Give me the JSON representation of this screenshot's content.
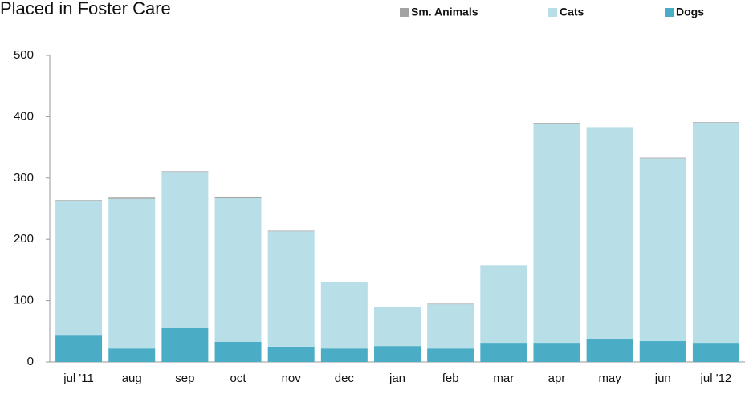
{
  "chart_data": {
    "type": "stacked_bar",
    "title": "Placed in Foster Care",
    "categories": [
      "jul '11",
      "aug",
      "sep",
      "oct",
      "nov",
      "dec",
      "jan",
      "feb",
      "mar",
      "apr",
      "may",
      "jun",
      "jul '12"
    ],
    "series": [
      {
        "name": "Sm. Animals",
        "color": "#a3a3a3",
        "values": [
          1,
          2,
          1,
          2,
          1,
          0,
          0,
          1,
          0,
          1,
          0,
          1,
          1
        ]
      },
      {
        "name": "Cats",
        "color": "#b8dee8",
        "values": [
          220,
          244,
          255,
          234,
          188,
          108,
          63,
          72,
          128,
          359,
          346,
          298,
          360
        ]
      },
      {
        "name": "Dogs",
        "color": "#4aadc5",
        "values": [
          43,
          22,
          55,
          33,
          25,
          22,
          26,
          22,
          30,
          30,
          37,
          34,
          30
        ]
      }
    ],
    "ylim": [
      0,
      500
    ],
    "yticks": [
      0,
      100,
      200,
      300,
      400,
      500
    ],
    "grid": false
  }
}
